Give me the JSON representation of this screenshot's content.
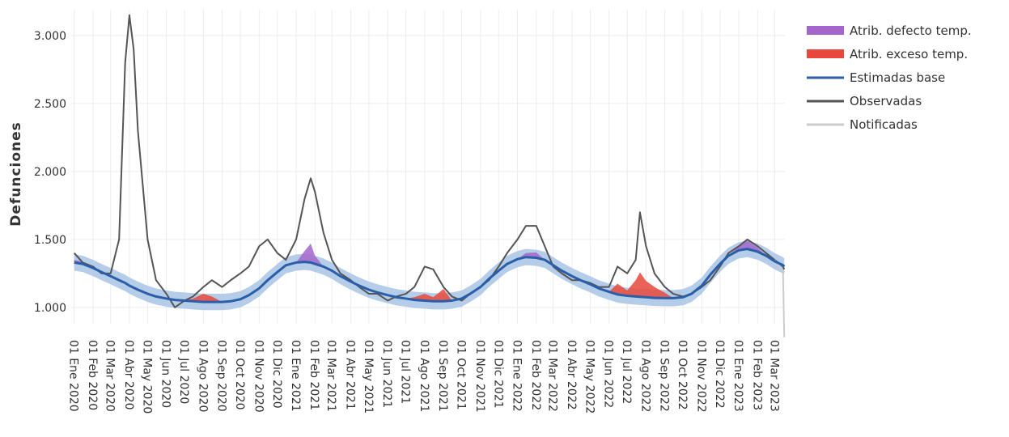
{
  "chart_data": {
    "type": "line",
    "y_label": "Defunciones",
    "xlim": [
      "2019-12-27",
      "2023-03-18"
    ],
    "ylim": [
      880,
      3190
    ],
    "grid": true,
    "legend": "right",
    "band_color": "#b5cde8",
    "yticks": [
      {
        "value": 1000,
        "label": "1.000"
      },
      {
        "value": 1500,
        "label": "1.500"
      },
      {
        "value": 2000,
        "label": "2.000"
      },
      {
        "value": 2500,
        "label": "2.500"
      },
      {
        "value": 3000,
        "label": "3.000"
      }
    ],
    "xticks": [
      {
        "value": "2020-01-01",
        "label": "01 Ene 2020"
      },
      {
        "value": "2020-02-01",
        "label": "01 Feb 2020"
      },
      {
        "value": "2020-03-01",
        "label": "01 Mar 2020"
      },
      {
        "value": "2020-04-01",
        "label": "01 Abr 2020"
      },
      {
        "value": "2020-05-01",
        "label": "01 May 2020"
      },
      {
        "value": "2020-06-01",
        "label": "01 Jun 2020"
      },
      {
        "value": "2020-07-01",
        "label": "01 Jul 2020"
      },
      {
        "value": "2020-08-01",
        "label": "01 Ago 2020"
      },
      {
        "value": "2020-09-01",
        "label": "01 Sep 2020"
      },
      {
        "value": "2020-10-01",
        "label": "01 Oct 2020"
      },
      {
        "value": "2020-11-01",
        "label": "01 Nov 2020"
      },
      {
        "value": "2020-12-01",
        "label": "01 Dic 2020"
      },
      {
        "value": "2021-01-01",
        "label": "01 Ene 2021"
      },
      {
        "value": "2021-02-01",
        "label": "01 Feb 2021"
      },
      {
        "value": "2021-03-01",
        "label": "01 Mar 2021"
      },
      {
        "value": "2021-04-01",
        "label": "01 Abr 2021"
      },
      {
        "value": "2021-05-01",
        "label": "01 May 2021"
      },
      {
        "value": "2021-06-01",
        "label": "01 Jun 2021"
      },
      {
        "value": "2021-07-01",
        "label": "01 Jul 2021"
      },
      {
        "value": "2021-08-01",
        "label": "01 Ago 2021"
      },
      {
        "value": "2021-09-01",
        "label": "01 Sep 2021"
      },
      {
        "value": "2021-10-01",
        "label": "01 Oct 2021"
      },
      {
        "value": "2021-11-01",
        "label": "01 Nov 2021"
      },
      {
        "value": "2021-12-01",
        "label": "01 Dic 2021"
      },
      {
        "value": "2022-01-01",
        "label": "01 Ene 2022"
      },
      {
        "value": "2022-02-01",
        "label": "01 Feb 2022"
      },
      {
        "value": "2022-03-01",
        "label": "01 Mar 2022"
      },
      {
        "value": "2022-04-01",
        "label": "01 Abr 2022"
      },
      {
        "value": "2022-05-01",
        "label": "01 May 2022"
      },
      {
        "value": "2022-06-01",
        "label": "01 Jun 2022"
      },
      {
        "value": "2022-07-01",
        "label": "01 Jul 2022"
      },
      {
        "value": "2022-08-01",
        "label": "01 Ago 2022"
      },
      {
        "value": "2022-09-01",
        "label": "01 Sep 2022"
      },
      {
        "value": "2022-10-01",
        "label": "01 Oct 2022"
      },
      {
        "value": "2022-11-01",
        "label": "01 Nov 2022"
      },
      {
        "value": "2022-12-01",
        "label": "01 Dic 2022"
      },
      {
        "value": "2023-01-01",
        "label": "01 Ene 2023"
      },
      {
        "value": "2023-02-01",
        "label": "01 Feb 2023"
      },
      {
        "value": "2023-03-01",
        "label": "01 Mar 2023"
      }
    ],
    "x": [
      "2020-01-01",
      "2020-01-15",
      "2020-02-01",
      "2020-02-15",
      "2020-03-01",
      "2020-03-15",
      "2020-03-25",
      "2020-04-01",
      "2020-04-08",
      "2020-04-15",
      "2020-05-01",
      "2020-05-15",
      "2020-06-01",
      "2020-06-15",
      "2020-07-01",
      "2020-07-15",
      "2020-08-01",
      "2020-08-15",
      "2020-09-01",
      "2020-09-15",
      "2020-10-01",
      "2020-10-15",
      "2020-11-01",
      "2020-11-15",
      "2020-12-01",
      "2020-12-15",
      "2021-01-01",
      "2021-01-15",
      "2021-01-25",
      "2021-02-01",
      "2021-02-15",
      "2021-03-01",
      "2021-03-15",
      "2021-04-01",
      "2021-04-15",
      "2021-05-01",
      "2021-05-15",
      "2021-06-01",
      "2021-06-15",
      "2021-07-01",
      "2021-07-15",
      "2021-08-01",
      "2021-08-15",
      "2021-09-01",
      "2021-09-15",
      "2021-10-01",
      "2021-10-15",
      "2021-11-01",
      "2021-11-15",
      "2021-12-01",
      "2021-12-15",
      "2022-01-01",
      "2022-01-15",
      "2022-02-01",
      "2022-02-15",
      "2022-03-01",
      "2022-03-15",
      "2022-04-01",
      "2022-04-15",
      "2022-05-01",
      "2022-05-15",
      "2022-06-01",
      "2022-06-15",
      "2022-07-01",
      "2022-07-15",
      "2022-07-22",
      "2022-08-01",
      "2022-08-15",
      "2022-09-01",
      "2022-09-15",
      "2022-10-01",
      "2022-10-15",
      "2022-11-01",
      "2022-11-15",
      "2022-12-01",
      "2022-12-15",
      "2023-01-01",
      "2023-01-15",
      "2023-02-01",
      "2023-02-15",
      "2023-03-01",
      "2023-03-15",
      "2023-03-17"
    ],
    "series": [
      {
        "name": "Atrib. defecto temp.",
        "color": "#a366cc",
        "kind": "stack",
        "values": [
          20,
          15,
          0,
          0,
          0,
          0,
          0,
          0,
          0,
          0,
          0,
          0,
          0,
          0,
          0,
          0,
          0,
          0,
          0,
          0,
          0,
          0,
          0,
          0,
          0,
          0,
          0,
          80,
          140,
          60,
          0,
          0,
          0,
          0,
          0,
          0,
          0,
          0,
          0,
          0,
          0,
          0,
          0,
          0,
          0,
          0,
          0,
          0,
          0,
          0,
          0,
          0,
          30,
          40,
          0,
          0,
          0,
          0,
          0,
          0,
          0,
          0,
          0,
          0,
          0,
          0,
          0,
          0,
          0,
          0,
          0,
          0,
          0,
          0,
          0,
          0,
          30,
          60,
          30,
          0,
          0,
          0,
          0
        ]
      },
      {
        "name": "Atrib. exceso temp.",
        "color": "#e8483b",
        "kind": "stack",
        "values": [
          0,
          0,
          0,
          0,
          0,
          0,
          0,
          0,
          0,
          0,
          0,
          0,
          0,
          0,
          0,
          20,
          60,
          40,
          0,
          0,
          0,
          0,
          0,
          0,
          0,
          0,
          0,
          0,
          0,
          0,
          0,
          0,
          0,
          0,
          0,
          0,
          0,
          0,
          0,
          0,
          20,
          50,
          30,
          90,
          0,
          0,
          0,
          0,
          0,
          0,
          0,
          0,
          0,
          0,
          0,
          0,
          0,
          0,
          0,
          0,
          0,
          0,
          80,
          40,
          120,
          180,
          120,
          80,
          40,
          0,
          0,
          0,
          0,
          0,
          0,
          0,
          0,
          0,
          0,
          0,
          0,
          0,
          0
        ]
      },
      {
        "name": "Estimadas base",
        "color": "#2b5ea8",
        "kind": "base",
        "values": [
          1330,
          1320,
          1290,
          1260,
          1230,
          1200,
          1180,
          1160,
          1145,
          1130,
          1100,
          1080,
          1065,
          1055,
          1050,
          1045,
          1040,
          1040,
          1040,
          1045,
          1060,
          1090,
          1140,
          1200,
          1260,
          1310,
          1330,
          1335,
          1330,
          1320,
          1300,
          1270,
          1230,
          1190,
          1160,
          1130,
          1110,
          1090,
          1075,
          1065,
          1055,
          1050,
          1045,
          1045,
          1050,
          1065,
          1100,
          1150,
          1210,
          1270,
          1320,
          1355,
          1370,
          1365,
          1350,
          1310,
          1270,
          1230,
          1200,
          1170,
          1140,
          1115,
          1095,
          1085,
          1080,
          1078,
          1075,
          1070,
          1068,
          1068,
          1075,
          1100,
          1160,
          1240,
          1320,
          1380,
          1420,
          1430,
          1410,
          1380,
          1340,
          1310,
          1300
        ],
        "lower": [
          1270,
          1260,
          1230,
          1200,
          1170,
          1140,
          1120,
          1100,
          1085,
          1070,
          1040,
          1020,
          1005,
          995,
          990,
          985,
          980,
          980,
          980,
          985,
          1000,
          1030,
          1080,
          1140,
          1200,
          1250,
          1270,
          1275,
          1270,
          1260,
          1240,
          1210,
          1170,
          1130,
          1100,
          1070,
          1050,
          1030,
          1015,
          1005,
          995,
          990,
          985,
          985,
          990,
          1005,
          1040,
          1090,
          1150,
          1210,
          1260,
          1295,
          1310,
          1305,
          1290,
          1250,
          1210,
          1170,
          1140,
          1110,
          1080,
          1055,
          1035,
          1025,
          1020,
          1018,
          1015,
          1010,
          1008,
          1008,
          1015,
          1040,
          1100,
          1180,
          1260,
          1320,
          1360,
          1370,
          1350,
          1320,
          1280,
          1250,
          1240
        ],
        "upper": [
          1390,
          1380,
          1350,
          1320,
          1290,
          1260,
          1240,
          1220,
          1205,
          1190,
          1160,
          1140,
          1125,
          1115,
          1110,
          1105,
          1100,
          1100,
          1100,
          1105,
          1120,
          1150,
          1200,
          1260,
          1320,
          1370,
          1390,
          1395,
          1390,
          1380,
          1360,
          1330,
          1290,
          1250,
          1220,
          1190,
          1170,
          1150,
          1135,
          1125,
          1115,
          1110,
          1105,
          1105,
          1110,
          1125,
          1160,
          1210,
          1270,
          1330,
          1380,
          1415,
          1430,
          1425,
          1410,
          1370,
          1330,
          1290,
          1260,
          1230,
          1200,
          1175,
          1155,
          1145,
          1140,
          1138,
          1135,
          1130,
          1128,
          1128,
          1135,
          1160,
          1220,
          1300,
          1380,
          1440,
          1480,
          1490,
          1470,
          1440,
          1400,
          1370,
          1360
        ]
      },
      {
        "name": "Observadas",
        "color": "#555555",
        "kind": "line",
        "values": [
          1400,
          1330,
          1300,
          1250,
          1250,
          1500,
          2800,
          3150,
          2900,
          2300,
          1500,
          1200,
          1100,
          1000,
          1050,
          1080,
          1150,
          1200,
          1150,
          1200,
          1250,
          1300,
          1450,
          1500,
          1400,
          1350,
          1500,
          1800,
          1950,
          1850,
          1550,
          1350,
          1250,
          1200,
          1150,
          1100,
          1100,
          1050,
          1080,
          1100,
          1150,
          1300,
          1280,
          1150,
          1080,
          1050,
          1100,
          1150,
          1200,
          1300,
          1400,
          1500,
          1600,
          1600,
          1450,
          1300,
          1250,
          1200,
          1200,
          1180,
          1150,
          1150,
          1300,
          1250,
          1350,
          1700,
          1450,
          1250,
          1150,
          1100,
          1080,
          1100,
          1150,
          1200,
          1300,
          1400,
          1450,
          1500,
          1450,
          1400,
          1350,
          1300,
          1280
        ]
      },
      {
        "name": "Notificadas",
        "color": "#cccccc",
        "kind": "line",
        "values": [
          null,
          null,
          null,
          null,
          null,
          null,
          null,
          null,
          null,
          null,
          null,
          null,
          null,
          null,
          null,
          null,
          null,
          null,
          null,
          null,
          null,
          null,
          null,
          null,
          null,
          null,
          null,
          null,
          null,
          null,
          null,
          null,
          null,
          null,
          null,
          null,
          null,
          null,
          null,
          null,
          null,
          null,
          null,
          null,
          null,
          null,
          null,
          null,
          null,
          null,
          null,
          null,
          null,
          null,
          null,
          null,
          null,
          null,
          null,
          null,
          null,
          null,
          null,
          null,
          null,
          null,
          null,
          null,
          null,
          null,
          null,
          null,
          null,
          null,
          null,
          null,
          null,
          null,
          null,
          null,
          1350,
          1250,
          780
        ]
      }
    ]
  }
}
